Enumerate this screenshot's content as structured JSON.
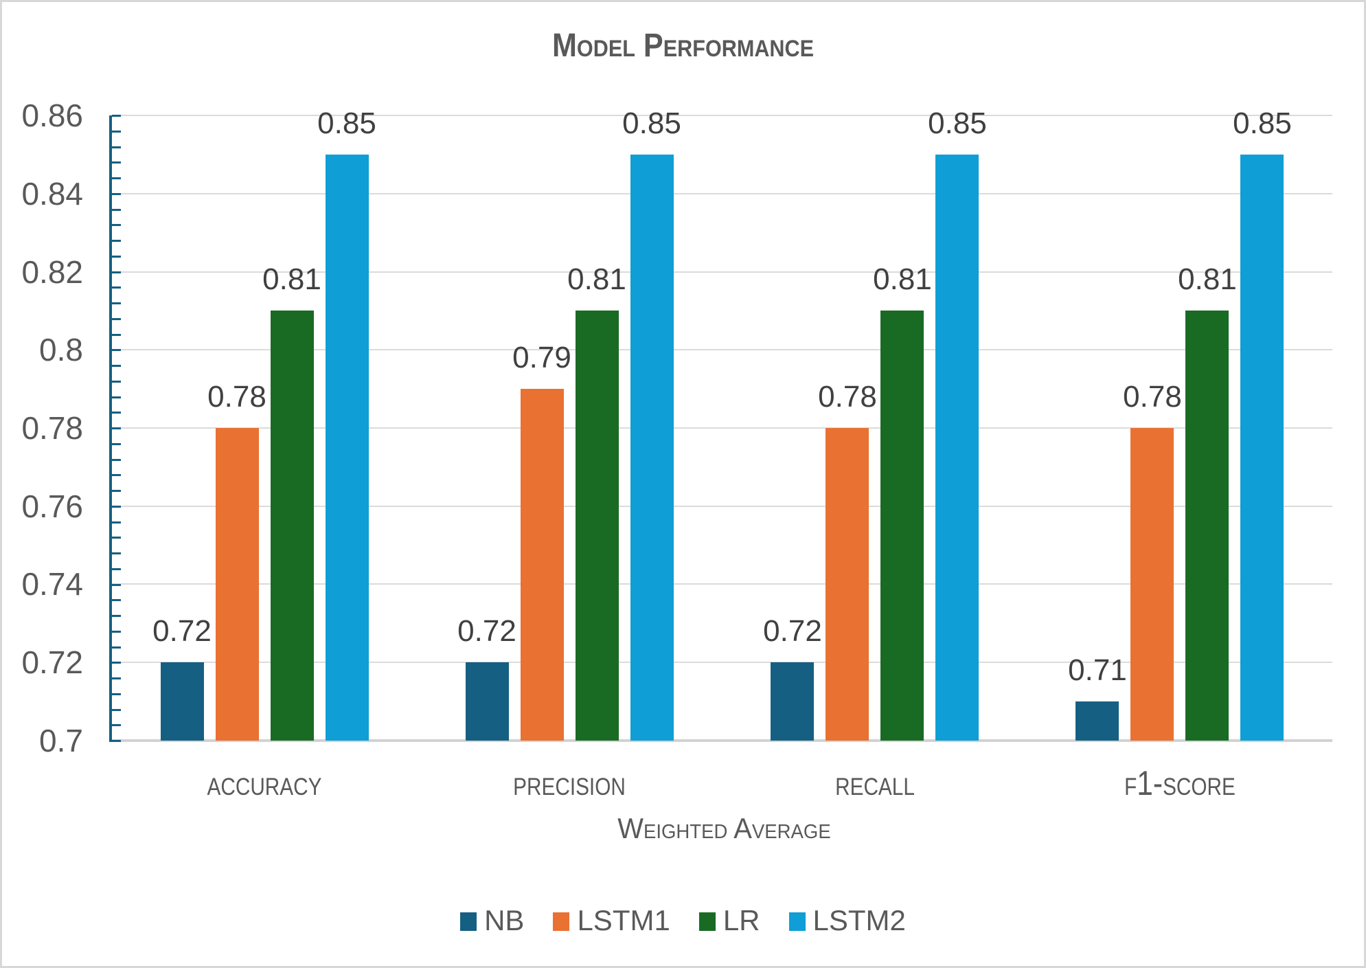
{
  "title": "Model Performance",
  "chart_data": {
    "type": "bar",
    "categories": [
      "accuracy",
      "precision",
      "recall",
      "f1-score"
    ],
    "series": [
      {
        "name": "NB",
        "color": "#156082",
        "values": [
          0.72,
          0.72,
          0.72,
          0.71
        ]
      },
      {
        "name": "LSTM1",
        "color": "#E97132",
        "values": [
          0.78,
          0.79,
          0.78,
          0.78
        ]
      },
      {
        "name": "LR",
        "color": "#196B24",
        "values": [
          0.81,
          0.81,
          0.81,
          0.81
        ]
      },
      {
        "name": "LSTM2",
        "color": "#0F9ED5",
        "values": [
          0.85,
          0.85,
          0.85,
          0.85
        ]
      }
    ],
    "xlabel": "Weighted Average",
    "ylabel": "",
    "ylim": [
      0.7,
      0.86
    ],
    "y_major_unit": 0.02,
    "y_minor_unit": 0.004,
    "y_tick_labels": [
      "0.86",
      "0.84",
      "0.82",
      "0.8",
      "0.78",
      "0.76",
      "0.74",
      "0.72",
      "0.7"
    ],
    "grid": true,
    "data_labels": true,
    "legend_position": "bottom",
    "colors": {
      "axis_line": "#156082",
      "gridline": "#DBDBDB",
      "tick_text": "#595959",
      "data_label_text": "#404040",
      "title_text": "#595959"
    }
  }
}
